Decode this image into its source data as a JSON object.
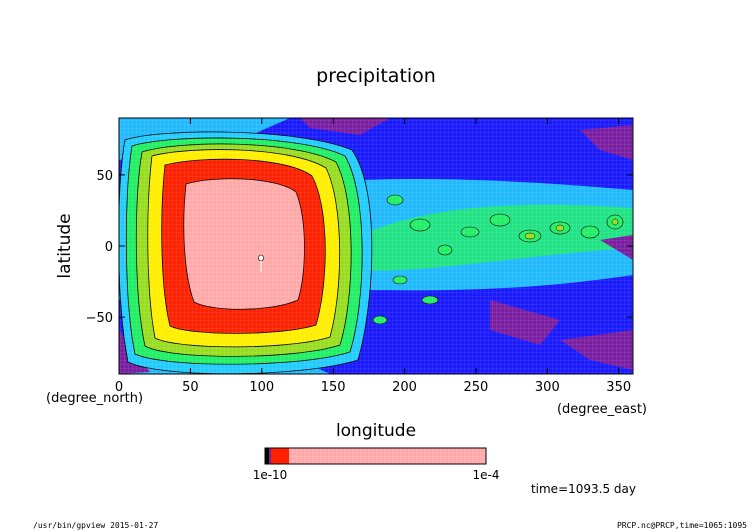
{
  "chart_data": {
    "type": "heatmap",
    "title": "precipitation",
    "xlabel": "longitude",
    "ylabel": "latitude",
    "x_unit": "(degree_east)",
    "y_unit": "(degree_north)",
    "xlim": [
      0,
      360
    ],
    "ylim": [
      -90,
      90
    ],
    "x_ticks": [
      0,
      50,
      100,
      150,
      200,
      250,
      300,
      350
    ],
    "y_ticks": [
      -50,
      0,
      50
    ],
    "time_label": "time=1093.5  day",
    "colorbar": {
      "label_left": "1e-10",
      "label_right": "1e-4",
      "scale": "log",
      "colors": [
        "#000000",
        "#7b1fa2",
        "#1a1aff",
        "#22ccff",
        "#22ee66",
        "#99dd22",
        "#ffee00",
        "#ff2200",
        "#ffaaaa"
      ]
    },
    "features": [
      {
        "name": "peak",
        "lon": 100,
        "lat": -10,
        "value_level": "max"
      }
    ]
  },
  "footer": {
    "left": "/usr/bin/gpview  2015-01-27",
    "right": "PRCP.nc@PRCP,time=1065:1095"
  }
}
